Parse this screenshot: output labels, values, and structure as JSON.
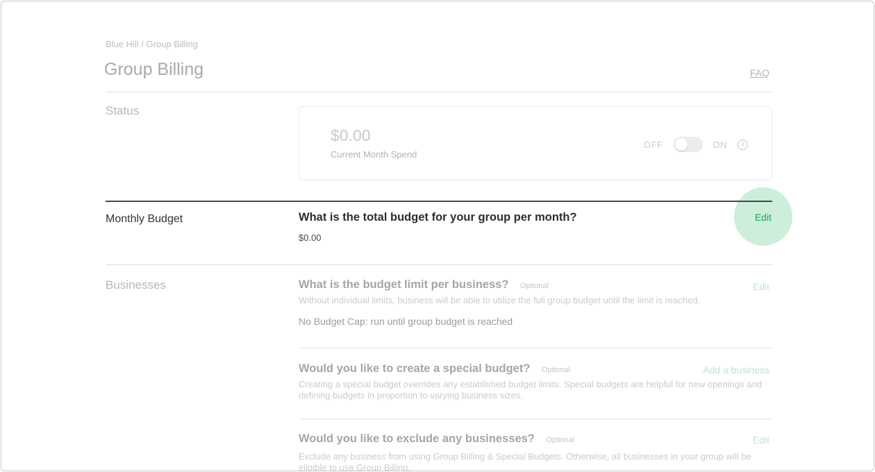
{
  "page": {
    "breadcrumb": "Blue Hill / Group Billing",
    "title": "Group Billing",
    "faq_label": "FAQ"
  },
  "status": {
    "label": "Status",
    "amount": "$0.00",
    "amount_caption": "Current Month Spend",
    "toggle": {
      "off_label": "OFF",
      "on_label": "ON",
      "state": "off"
    },
    "info_icon_glyph": "i"
  },
  "monthly_budget": {
    "label": "Monthly Budget",
    "question": "What is the total budget for your group per month?",
    "value": "$0.00",
    "edit_label": "Edit"
  },
  "businesses": {
    "label": "Businesses",
    "items": [
      {
        "question": "What is the budget limit per business?",
        "optional_label": "Optional",
        "action_label": "Edit",
        "description": "Without individual limits, business will be able to utilize the full group budget until the limit is reached.",
        "value": "No Budget Cap: run until group budget is reached"
      },
      {
        "question": "Would you like to create a special budget?",
        "optional_label": "Optional",
        "action_label": "Add a business",
        "description": "Creating a special budget overrides any established budget limits. Special budgets are helpful for new openings and defining budgets in proportion to varying business sizes.",
        "value": ""
      },
      {
        "question": "Would you like to exclude any businesses?",
        "optional_label": "Optional",
        "action_label": "Edit",
        "description": "Exclude any business from using Group Billing & Special Budgets. Otherwise, all businesses in your group will be eligible to use Group Billing.",
        "value": ""
      }
    ]
  },
  "colors": {
    "accent_green": "#0fad55",
    "accent_green_faded": "#bee5cd",
    "highlight_circle": "#cdeeda",
    "active_text": "#2d2d2d",
    "muted_text": "#a6a6a6"
  }
}
